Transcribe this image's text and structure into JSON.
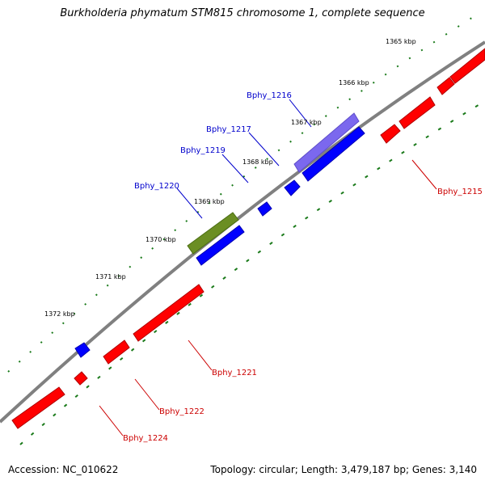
{
  "title": "Burkholderia phymatum STM815 chromosome 1, complete sequence",
  "accession": "Accession: NC_010622",
  "summary": "Topology: circular; Length: 3,479,187 bp; Genes: 3,140",
  "colors": {
    "forward_strand": "#0000ff",
    "reverse_strand": "#ff0000",
    "selected_gene": "#7b68ee",
    "other_gene": "#6b8e23",
    "backbone": "#808080",
    "tick_marks": "#1a7a1a",
    "forward_label": "#0000cc",
    "reverse_label": "#cc0000"
  },
  "position_ticks": [
    {
      "label": "1365 kbp"
    },
    {
      "label": "1366 kbp"
    },
    {
      "label": "1367 kbp"
    },
    {
      "label": "1368 kbp"
    },
    {
      "label": "1369 kbp"
    },
    {
      "label": "1370 kbp"
    },
    {
      "label": "1371 kbp"
    },
    {
      "label": "1372 kbp"
    }
  ],
  "gene_labels": [
    {
      "name": "Bphy_1216",
      "strand": "forward"
    },
    {
      "name": "Bphy_1217",
      "strand": "forward"
    },
    {
      "name": "Bphy_1219",
      "strand": "forward"
    },
    {
      "name": "Bphy_1220",
      "strand": "forward"
    },
    {
      "name": "Bphy_1215",
      "strand": "reverse"
    },
    {
      "name": "Bphy_1221",
      "strand": "reverse"
    },
    {
      "name": "Bphy_1222",
      "strand": "reverse"
    },
    {
      "name": "Bphy_1224",
      "strand": "reverse"
    }
  ]
}
